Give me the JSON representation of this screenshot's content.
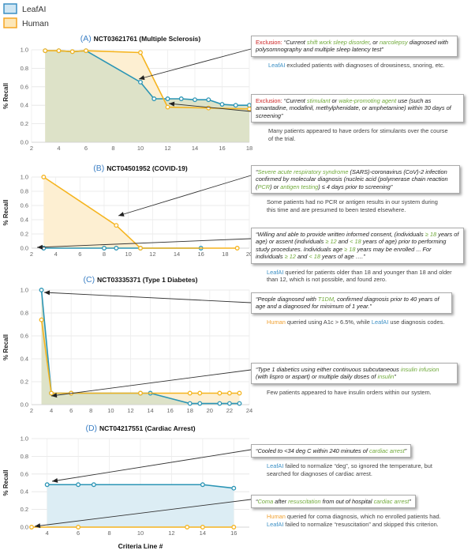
{
  "legend": [
    {
      "name": "LeafAI",
      "stroke": "#3b8fc4",
      "fill": "#cfe6f3"
    },
    {
      "name": "Human",
      "stroke": "#f5a623",
      "fill": "#fde7b8"
    }
  ],
  "colors": {
    "leafai": "#2b95b5",
    "human": "#f5b41f",
    "highlight": "#6fa93a",
    "exclusion": "#cc2222",
    "area_overlap": "#dde2c8",
    "area_human": "#fdefd2",
    "area_leafai": "#dcedf4"
  },
  "xlabel_common": "Criteria Line #",
  "chart_data": [
    {
      "type": "line",
      "panel": "(A)",
      "title": "NCT03621761 (Multiple Sclerosis)",
      "ylabel": "% Recall",
      "xlim": [
        2,
        18
      ],
      "ylim": [
        0,
        1.0
      ],
      "xticks": [
        2,
        4,
        6,
        8,
        10,
        12,
        14,
        16,
        18
      ],
      "yticks": [
        0.0,
        0.2,
        0.4,
        0.6,
        0.8,
        1.0
      ],
      "fill": "overlap",
      "series": [
        {
          "name": "Human",
          "x": [
            3,
            4,
            5,
            6,
            10,
            12,
            15,
            18
          ],
          "y": [
            0.99,
            0.99,
            0.98,
            0.99,
            0.97,
            0.38,
            0.37,
            0.36
          ]
        },
        {
          "name": "LeafAI",
          "x": [
            3,
            4,
            5,
            6,
            10,
            11,
            12,
            13,
            14,
            15,
            16,
            17,
            18
          ],
          "y": [
            0.99,
            0.99,
            0.98,
            0.99,
            0.65,
            0.47,
            0.47,
            0.47,
            0.46,
            0.46,
            0.41,
            0.4,
            0.4
          ]
        }
      ]
    },
    {
      "type": "line",
      "panel": "(B)",
      "title": "NCT04501952 (COVID-19)",
      "ylabel": "% Recall",
      "xlim": [
        2,
        20
      ],
      "ylim": [
        0,
        1.0
      ],
      "xticks": [
        2,
        4,
        6,
        8,
        10,
        12,
        14,
        16,
        18,
        20
      ],
      "yticks": [
        0.0,
        0.2,
        0.4,
        0.6,
        0.8,
        1.0
      ],
      "fill": "human",
      "series": [
        {
          "name": "Human",
          "x": [
            3,
            9,
            11,
            19
          ],
          "y": [
            1.0,
            0.32,
            0.0,
            0.0
          ]
        },
        {
          "name": "LeafAI",
          "x": [
            3,
            8,
            9,
            11,
            16
          ],
          "y": [
            0.0,
            0.0,
            0.0,
            0.0,
            0.0
          ]
        }
      ]
    },
    {
      "type": "line",
      "panel": "(C)",
      "title": "NCT03335371 (Type 1 Diabetes)",
      "ylabel": "% Recall",
      "xlim": [
        2,
        24
      ],
      "ylim": [
        0,
        1.0
      ],
      "xticks": [
        2,
        4,
        6,
        8,
        10,
        12,
        14,
        16,
        18,
        20,
        22,
        24
      ],
      "yticks": [
        0.0,
        0.2,
        0.4,
        0.6,
        0.8,
        1.0
      ],
      "fill": "overlap",
      "series": [
        {
          "name": "Human",
          "x": [
            3,
            4,
            6,
            13,
            18,
            19,
            21,
            22,
            23
          ],
          "y": [
            0.74,
            0.1,
            0.1,
            0.1,
            0.1,
            0.1,
            0.1,
            0.1,
            0.1
          ]
        },
        {
          "name": "LeafAI",
          "x": [
            3,
            4,
            6,
            13,
            14,
            18,
            19,
            21,
            22,
            23
          ],
          "y": [
            1.0,
            0.1,
            0.1,
            0.1,
            0.1,
            0.01,
            0.01,
            0.01,
            0.01,
            0.01
          ]
        }
      ]
    },
    {
      "type": "line",
      "panel": "(D)",
      "title": "NCT04217551 (Cardiac Arrest)",
      "ylabel": "% Recall",
      "xlabel": "Criteria Line #",
      "xlim": [
        3,
        17
      ],
      "ylim": [
        0,
        1.0
      ],
      "xticks": [
        4,
        6,
        8,
        10,
        12,
        14,
        16
      ],
      "yticks": [
        0.0,
        0.2,
        0.4,
        0.6,
        0.8,
        1.0
      ],
      "fill": "leafai",
      "series": [
        {
          "name": "Human",
          "x": [
            3,
            6,
            13,
            14,
            16
          ],
          "y": [
            0.0,
            0.0,
            0.0,
            0.0,
            0.0
          ]
        },
        {
          "name": "LeafAI",
          "x": [
            4,
            6,
            7,
            14,
            16
          ],
          "y": [
            0.48,
            0.48,
            0.48,
            0.48,
            0.44
          ]
        }
      ]
    }
  ],
  "annotations": {
    "a1": {
      "p1": "Exclusion: ",
      "p2": "“Current ",
      "p3": "shift work sleep disorder",
      "p4": ", or ",
      "p5": "narcolepsy",
      "p6": " diagnosed with polysomnography and multiple sleep latency test”",
      "n1": "LeafAI",
      "n2": " excluded patients with diagnoses of drowsiness, snoring, etc."
    },
    "a2": {
      "p1": "Exclusion: ",
      "p2": "“Current ",
      "p3": "stimulant",
      "p4": " or ",
      "p5": "wake-promoting agent",
      "p6": " use (such as amantadine, modafinil, methylphenidate, or amphetamine) within 30 days of screening”",
      "n1": "Many patients appeared to have orders for stimulants over the course of the trial."
    },
    "b1": {
      "p1": "“",
      "p2": "Severe acute respiratory syndrome",
      "p3": " (SARS)-coronavirus (CoV)-2 infection confirmed by molecular diagnosis (nucleic acid (polymerase chain reaction (",
      "p4": "PCR",
      "p5": ") or ",
      "p6": "antigen testing",
      "p7": ") ≤ 4 days prior to screening”",
      "n1": "Some patients had no PCR or antigen results in our system during this time and are presumed to been tested elsewhere."
    },
    "b2": {
      "p1": "“Willing and able to provide written informed consent, (individuals ",
      "p2": "≥ 18",
      "p3": " years of age) or assent (individuals ",
      "p4": "≥ 12",
      "p5": " and ",
      "p6": "< 18",
      "p7": " years of age) prior to performing study procedures. Individuals age ",
      "p8": "≥ 18",
      "p9": " years may be enrolled ... For individuals ",
      "p10": "≥ 12",
      "p11": " and ",
      "p12": "< 18",
      "p13": " years of age ….”",
      "n1": "LeafAI",
      "n2": " queried for patients older than 18 and younger than 18 and older than 12, which is not possible, and found zero."
    },
    "c1": {
      "p1": "“People diagnosed with ",
      "p2": "T1DM",
      "p3": ", confirmed diagnosis prior to 40 years of age and a diagnosed for minimum of 1 year.”",
      "n1": "Human",
      "n2": " queried using A1c > 6.5%, while ",
      "n3": "LeafAI",
      "n4": " use diagnosis codes."
    },
    "c2": {
      "p1": "“Type 1 diabetics using either continuous subcutaneous ",
      "p2": "insulin infusion",
      "p3": " (with lispro or aspart) or multiple daily doses of ",
      "p4": "insulin",
      "p5": "”",
      "n1": "Few patients appeared to have insulin orders within our system."
    },
    "d1": {
      "p1": "“Cooled to <34 deg C within 240 minutes of ",
      "p2": "cardiac arrest",
      "p3": "”",
      "n1": "LeafAI",
      "n2": " failed to normalize “deg”, so ignored the temperature, but searched for diagnoses of cardiac arrest."
    },
    "d2": {
      "p1": "“",
      "p2": "Coma",
      "p3": " after ",
      "p4": "resuscitation",
      "p5": " from out of hospital ",
      "p6": "cardiac arrest",
      "p7": "”",
      "n1": "Human",
      "n2": " queried for coma diagnosis, which no enrolled patients had.",
      "n3": "LeafAI",
      "n4": " failed to normalize “resuscitation” and skipped this criterion."
    }
  }
}
